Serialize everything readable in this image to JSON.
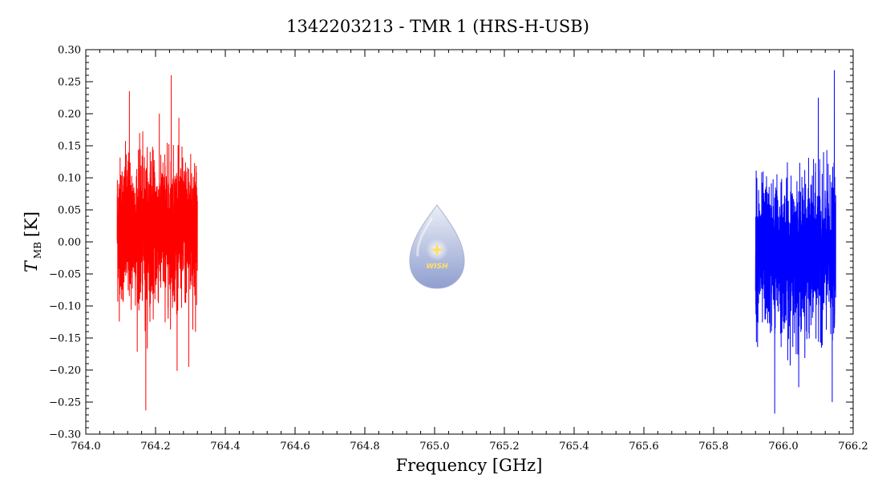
{
  "chart_data": {
    "type": "line",
    "title": "1342203213 - TMR 1 (HRS-H-USB)",
    "xlabel": "Frequency [GHz]",
    "ylabel_main": "T",
    "ylabel_sub": "MB",
    "ylabel_unit": "[K]",
    "xlim": [
      764.0,
      766.2
    ],
    "ylim": [
      -0.3,
      0.3
    ],
    "x_ticks": [
      "764.0",
      "764.2",
      "764.4",
      "764.6",
      "764.8",
      "765.0",
      "765.2",
      "765.4",
      "765.6",
      "765.8",
      "766.0",
      "766.2"
    ],
    "y_ticks": [
      "0.30",
      "0.25",
      "0.20",
      "0.15",
      "0.10",
      "0.05",
      "0.00",
      "−0.05",
      "−0.10",
      "−0.15",
      "−0.20",
      "−0.25",
      "−0.30"
    ],
    "grid": false,
    "series": [
      {
        "color": "#ff0000",
        "x_range": [
          764.09,
          764.32
        ],
        "mean": 0.02,
        "envelope": [
          -0.26,
          0.26
        ],
        "peaks": [
          {
            "x": 764.245,
            "y": 0.26
          },
          {
            "x": 764.125,
            "y": 0.235
          },
          {
            "x": 764.172,
            "y": -0.263
          },
          {
            "x": 764.295,
            "y": -0.195
          }
        ]
      },
      {
        "color": "#0000ff",
        "x_range": [
          765.92,
          766.15
        ],
        "mean": -0.02,
        "envelope": [
          -0.27,
          0.27
        ],
        "peaks": [
          {
            "x": 766.146,
            "y": 0.268
          },
          {
            "x": 766.1,
            "y": 0.225
          },
          {
            "x": 765.975,
            "y": -0.268
          },
          {
            "x": 766.14,
            "y": -0.25
          }
        ]
      }
    ]
  },
  "logo": {
    "label": "WISH",
    "colors": {
      "drop_top": "#e8ecf5",
      "drop_bottom": "#7d8ec8",
      "star": "#ffe066"
    }
  }
}
